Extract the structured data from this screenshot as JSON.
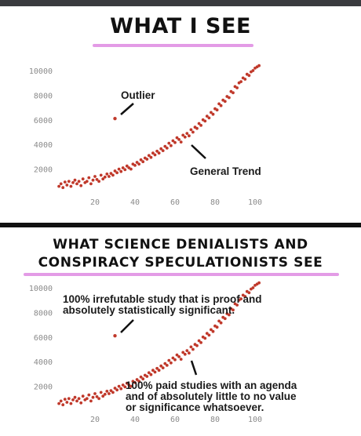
{
  "panel_top": {
    "title": "WHAT I SEE",
    "annotations": {
      "outlier": "Outlier",
      "trend": "General Trend"
    }
  },
  "panel_bottom": {
    "title_line1": "WHAT SCIENCE DENIALISTS AND",
    "title_line2": "CONSPIRACY SPECULATIONISTS SEE",
    "annotations": {
      "outlier_lines": [
        "100% irrefutable study that is proof and",
        "absolutely statistically significant."
      ],
      "trend_lines": [
        "100% paid studies with an agenda",
        "and of absolutely little to no value",
        "or significance whatsoever."
      ]
    }
  },
  "colors": {
    "points": "#c0392b",
    "title_underline": "#e39be6",
    "axis_text": "#8a8a8a"
  },
  "chart_data": [
    {
      "type": "scatter",
      "title": "WHAT I SEE",
      "x_ticks": [
        "20",
        "40",
        "60",
        "80",
        "100"
      ],
      "y_ticks": [
        "2000",
        "4000",
        "6000",
        "8000",
        "10000"
      ],
      "xlim": [
        0,
        100
      ],
      "ylim": [
        0,
        10000
      ],
      "outlier": [
        30,
        6100
      ],
      "series": [
        {
          "x": [
            2,
            3,
            4,
            5,
            6,
            7,
            8,
            9,
            10,
            11,
            12,
            13,
            14,
            15,
            16,
            17,
            18,
            19,
            20,
            21,
            22,
            23,
            24,
            25,
            26,
            27,
            28,
            29,
            30,
            31,
            32,
            33,
            34,
            35,
            36,
            37,
            38,
            39,
            40,
            41,
            42,
            43,
            44,
            45,
            46,
            47,
            48,
            49,
            50,
            51,
            52,
            53,
            54,
            55,
            56,
            57,
            58,
            59,
            60,
            61,
            62,
            63,
            64,
            65,
            66,
            67,
            68,
            69,
            70,
            71,
            72,
            73,
            74,
            75,
            76,
            77,
            78,
            79,
            80,
            81,
            82,
            83,
            84,
            85,
            86,
            87,
            88,
            89,
            90,
            91,
            92,
            93,
            94,
            95,
            96,
            97,
            98,
            99,
            100,
            101,
            102
          ],
          "y": [
            600,
            800,
            500,
            950,
            700,
            1000,
            600,
            900,
            1100,
            800,
            1000,
            650,
            1200,
            900,
            1000,
            1300,
            800,
            1100,
            1400,
            1150,
            1000,
            1500,
            1200,
            1350,
            1600,
            1400,
            1650,
            1500,
            1850,
            1700,
            2000,
            1800,
            2100,
            1950,
            2250,
            2100,
            2000,
            2400,
            2300,
            2550,
            2400,
            2750,
            2600,
            2900,
            2800,
            3100,
            2950,
            3300,
            3150,
            3450,
            3300,
            3650,
            3500,
            3850,
            3700,
            4100,
            3900,
            4300,
            4150,
            4550,
            4400,
            4200,
            4750,
            4600,
            4900,
            4700,
            5200,
            5000,
            5400,
            5300,
            5700,
            5550,
            6000,
            5900,
            6300,
            6150,
            6600,
            6450,
            6900,
            6800,
            7300,
            7150,
            7600,
            7500,
            7900,
            7800,
            8300,
            8200,
            8700,
            8600,
            9000,
            9100,
            9400,
            9300,
            9700,
            9600,
            9900,
            10000,
            10200,
            10300,
            10400
          ]
        }
      ]
    },
    {
      "type": "scatter",
      "title": "WHAT SCIENCE DENIALISTS AND CONSPIRACY SPECULATIONISTS SEE",
      "x_ticks": [
        "20",
        "40",
        "60",
        "80",
        "100"
      ],
      "y_ticks": [
        "2000",
        "4000",
        "6000",
        "8000",
        "10000"
      ],
      "xlim": [
        0,
        100
      ],
      "ylim": [
        0,
        10000
      ],
      "outlier": [
        30,
        6100
      ],
      "series": [
        {
          "x": [
            2,
            3,
            4,
            5,
            6,
            7,
            8,
            9,
            10,
            11,
            12,
            13,
            14,
            15,
            16,
            17,
            18,
            19,
            20,
            21,
            22,
            23,
            24,
            25,
            26,
            27,
            28,
            29,
            30,
            31,
            32,
            33,
            34,
            35,
            36,
            37,
            38,
            39,
            40,
            41,
            42,
            43,
            44,
            45,
            46,
            47,
            48,
            49,
            50,
            51,
            52,
            53,
            54,
            55,
            56,
            57,
            58,
            59,
            60,
            61,
            62,
            63,
            64,
            65,
            66,
            67,
            68,
            69,
            70,
            71,
            72,
            73,
            74,
            75,
            76,
            77,
            78,
            79,
            80,
            81,
            82,
            83,
            84,
            85,
            86,
            87,
            88,
            89,
            90,
            91,
            92,
            93,
            94,
            95,
            96,
            97,
            98,
            99,
            100,
            101,
            102
          ],
          "y": [
            600,
            800,
            500,
            950,
            700,
            1000,
            600,
            900,
            1100,
            800,
            1000,
            650,
            1200,
            900,
            1000,
            1300,
            800,
            1100,
            1400,
            1150,
            1000,
            1500,
            1200,
            1350,
            1600,
            1400,
            1650,
            1500,
            1850,
            1700,
            2000,
            1800,
            2100,
            1950,
            2250,
            2100,
            2000,
            2400,
            2300,
            2550,
            2400,
            2750,
            2600,
            2900,
            2800,
            3100,
            2950,
            3300,
            3150,
            3450,
            3300,
            3650,
            3500,
            3850,
            3700,
            4100,
            3900,
            4300,
            4150,
            4550,
            4400,
            4200,
            4750,
            4600,
            4900,
            4700,
            5200,
            5000,
            5400,
            5300,
            5700,
            5550,
            6000,
            5900,
            6300,
            6150,
            6600,
            6450,
            6900,
            6800,
            7300,
            7150,
            7600,
            7500,
            7900,
            7800,
            8300,
            8200,
            8700,
            8600,
            9000,
            9100,
            9400,
            9300,
            9700,
            9600,
            9900,
            10000,
            10200,
            10300,
            10400
          ]
        }
      ]
    }
  ]
}
